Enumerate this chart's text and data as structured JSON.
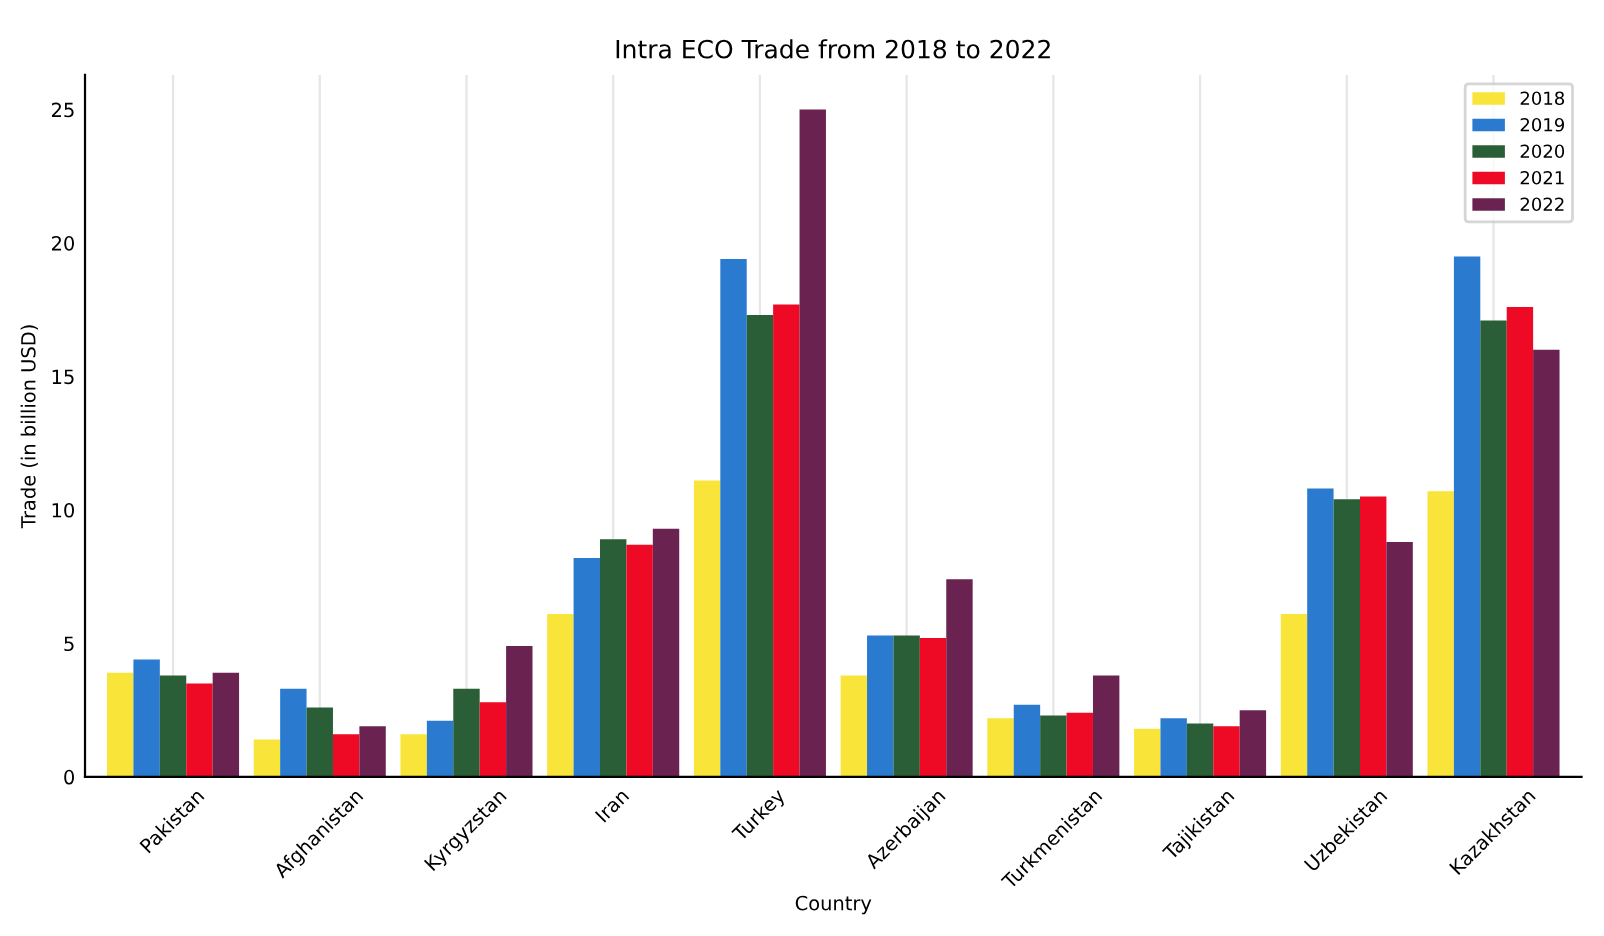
{
  "chart_data": {
    "type": "bar",
    "title": "Intra ECO Trade from 2018 to 2022",
    "xlabel": "Country",
    "ylabel": "Trade (in billion USD)",
    "categories": [
      "Pakistan",
      "Afghanistan",
      "Kyrgyzstan",
      "Iran",
      "Turkey",
      "Azerbaijan",
      "Turkmenistan",
      "Tajikistan",
      "Uzbekistan",
      "Kazakhstan"
    ],
    "series": [
      {
        "name": "2018",
        "color": "#f9e43a",
        "values": [
          3.9,
          1.4,
          1.6,
          6.1,
          11.1,
          3.8,
          2.2,
          1.8,
          6.1,
          10.7
        ]
      },
      {
        "name": "2019",
        "color": "#2a7bcf",
        "values": [
          4.4,
          3.3,
          2.1,
          8.2,
          19.4,
          5.3,
          2.7,
          2.2,
          10.8,
          19.5
        ]
      },
      {
        "name": "2020",
        "color": "#2a5e37",
        "values": [
          3.8,
          2.6,
          3.3,
          8.9,
          17.3,
          5.3,
          2.3,
          2.0,
          10.4,
          17.1
        ]
      },
      {
        "name": "2021",
        "color": "#ee0a24",
        "values": [
          3.5,
          1.6,
          2.8,
          8.7,
          17.7,
          5.2,
          2.4,
          1.9,
          10.5,
          17.6
        ]
      },
      {
        "name": "2022",
        "color": "#6a2350",
        "values": [
          3.9,
          1.9,
          4.9,
          9.3,
          25.0,
          7.4,
          3.8,
          2.5,
          8.8,
          16.0
        ]
      }
    ],
    "ylim": [
      0,
      26.3
    ],
    "yticks": [
      0,
      5,
      10,
      15,
      20,
      25
    ],
    "grid": "x",
    "legend": "top right"
  }
}
